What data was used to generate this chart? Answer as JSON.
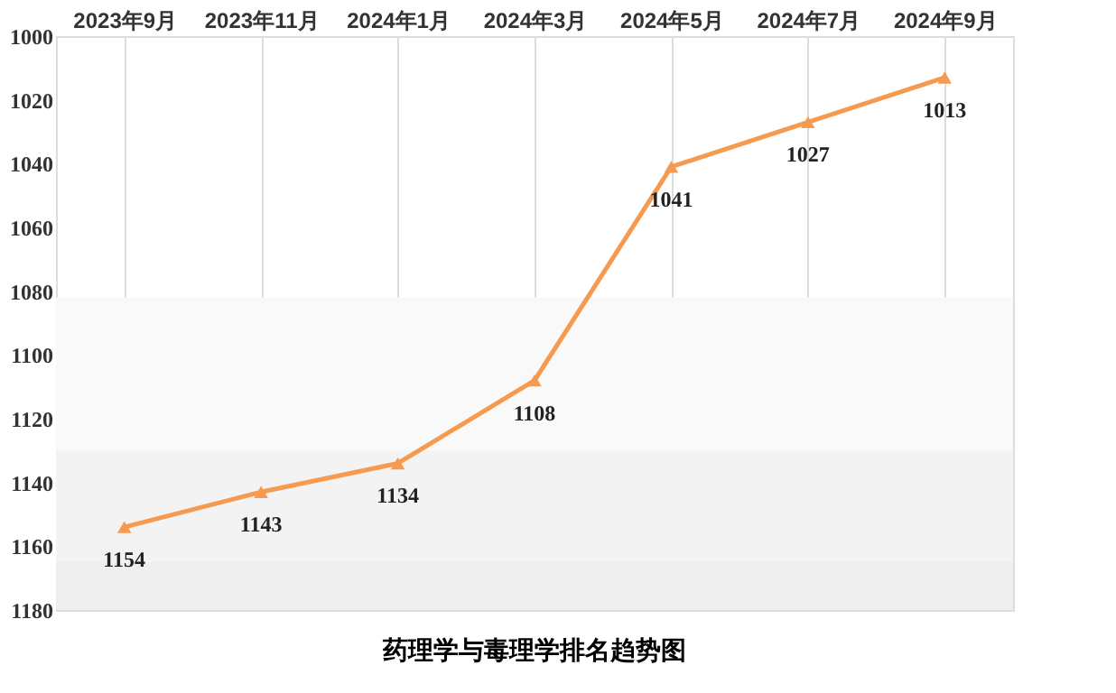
{
  "chart_data": {
    "type": "line",
    "title": "药理学与毒理学排名趋势图",
    "categories": [
      "2023年9月",
      "2023年11月",
      "2024年1月",
      "2024年3月",
      "2024年5月",
      "2024年7月",
      "2024年9月"
    ],
    "series": [
      {
        "color": "#f59a4e",
        "values": [
          1154,
          1143,
          1134,
          1108,
          1041,
          1027,
          1013
        ]
      }
    ],
    "ylim": [
      1180,
      1000
    ],
    "yticks": [
      1000,
      1020,
      1040,
      1060,
      1080,
      1100,
      1120,
      1140,
      1160,
      1180
    ],
    "bands": [
      {
        "axis": "y",
        "from": 1082,
        "to": 1130,
        "color": "#f9f9f9"
      },
      {
        "axis": "y",
        "from": 1130,
        "to": 1165,
        "color": "#f3f3f3"
      },
      {
        "axis": "y",
        "from": 1165,
        "to": 1180,
        "color": "#eeeeee"
      }
    ],
    "grid": "x",
    "marker": "triangle",
    "line_style": "solid",
    "data_labels": true
  }
}
